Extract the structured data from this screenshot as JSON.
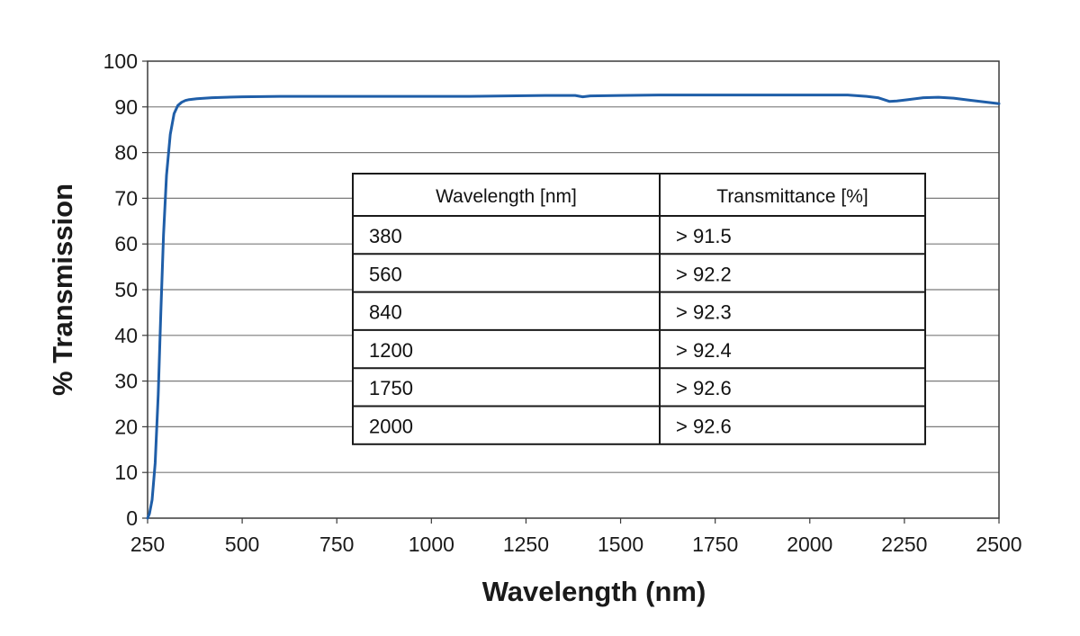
{
  "chart_data": {
    "type": "line",
    "title": "",
    "xlabel": "Wavelength (nm)",
    "ylabel": "% Transmission",
    "xlim": [
      250,
      2500
    ],
    "ylim": [
      0,
      100
    ],
    "xticks": [
      250,
      500,
      750,
      1000,
      1250,
      1500,
      1750,
      2000,
      2250,
      2500
    ],
    "yticks": [
      0,
      10,
      20,
      30,
      40,
      50,
      60,
      70,
      80,
      90,
      100
    ],
    "grid": "horizontal",
    "line_color": "#1f5ea8",
    "series": [
      {
        "name": "Transmission",
        "x": [
          250,
          255,
          262,
          270,
          278,
          285,
          292,
          300,
          310,
          320,
          330,
          340,
          350,
          360,
          380,
          420,
          500,
          600,
          700,
          800,
          900,
          1000,
          1100,
          1200,
          1300,
          1380,
          1400,
          1420,
          1500,
          1600,
          1700,
          1800,
          1900,
          2000,
          2100,
          2150,
          2180,
          2210,
          2230,
          2260,
          2300,
          2340,
          2380,
          2420,
          2460,
          2500
        ],
        "y": [
          0,
          1,
          4,
          12,
          27,
          45,
          62,
          75,
          84,
          88.5,
          90.3,
          91.0,
          91.4,
          91.6,
          91.8,
          92.0,
          92.2,
          92.3,
          92.3,
          92.3,
          92.3,
          92.3,
          92.3,
          92.4,
          92.5,
          92.5,
          92.2,
          92.4,
          92.5,
          92.6,
          92.6,
          92.6,
          92.6,
          92.6,
          92.6,
          92.3,
          92.0,
          91.2,
          91.3,
          91.6,
          92.0,
          92.1,
          91.9,
          91.5,
          91.1,
          90.7
        ]
      }
    ],
    "inset_table": {
      "headers": [
        "Wavelength [nm]",
        "Transmittance [%]"
      ],
      "rows": [
        [
          "380",
          "> 91.5"
        ],
        [
          "560",
          "> 92.2"
        ],
        [
          "840",
          "> 92.3"
        ],
        [
          "1200",
          "> 92.4"
        ],
        [
          "1750",
          "> 92.6"
        ],
        [
          "2000",
          "> 92.6"
        ]
      ]
    }
  }
}
